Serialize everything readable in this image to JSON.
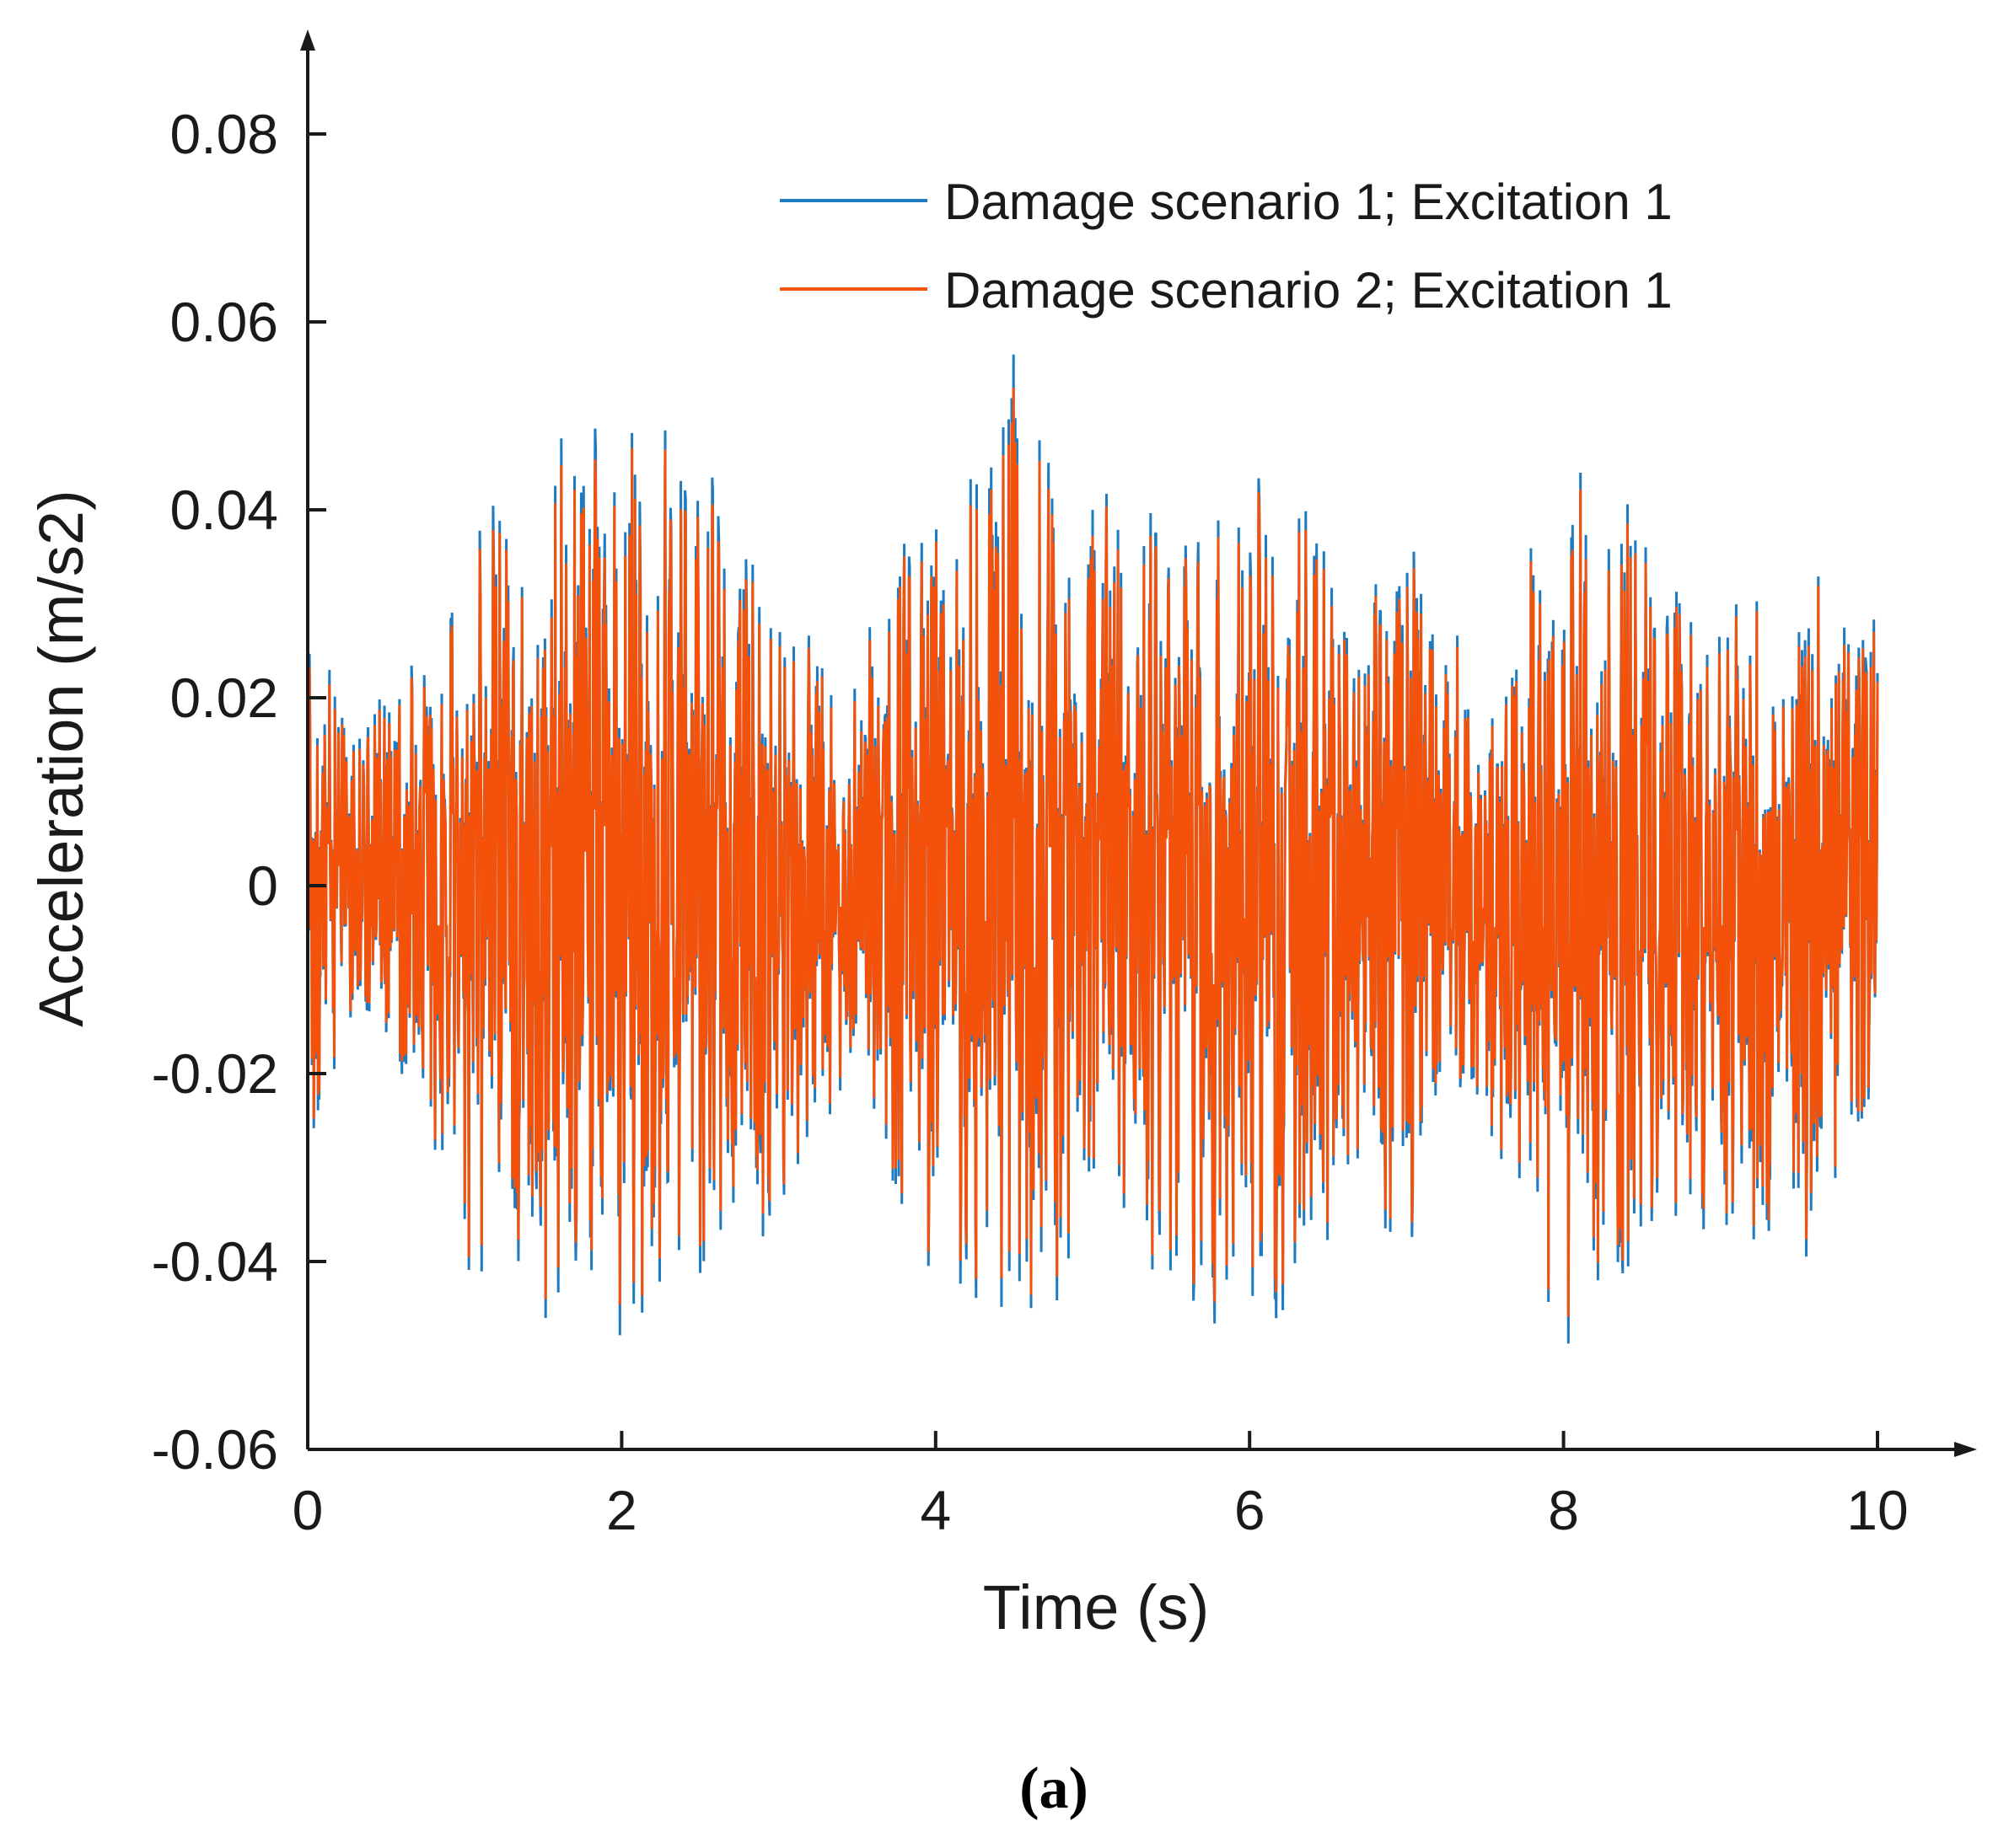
{
  "chart_data": {
    "type": "line",
    "title": "",
    "xlabel": "Time (s)",
    "ylabel": "Acceleration (m/s2)",
    "xlim": [
      0,
      10
    ],
    "ylim": [
      -0.06,
      0.08
    ],
    "xticks": [
      0,
      2,
      4,
      6,
      8,
      10
    ],
    "xtick_labels": [
      "0",
      "2",
      "4",
      "6",
      "8",
      "10"
    ],
    "yticks": [
      -0.06,
      -0.04,
      -0.02,
      0,
      0.02,
      0.04,
      0.06,
      0.08
    ],
    "ytick_labels": [
      "-0.06",
      "-0.04",
      "-0.02",
      "0",
      "0.02",
      "0.04",
      "0.06",
      "0.08"
    ],
    "grid": false,
    "legend_position": "top-right",
    "series": [
      {
        "name": "Damage scenario 1; Excitation 1",
        "color": "#1f7bc1"
      },
      {
        "name": "Damage scenario 2; Excitation 1",
        "color": "#f4520b"
      }
    ],
    "envelope": {
      "t": [
        0.0,
        0.3,
        0.6,
        1.0,
        1.5,
        2.0,
        2.3,
        2.6,
        3.0,
        3.4,
        3.8,
        4.2,
        4.5,
        5.0,
        5.4,
        5.8,
        6.2,
        6.6,
        7.0,
        7.4,
        7.8,
        8.0,
        8.4,
        8.8,
        9.2,
        9.6,
        10.0
      ],
      "max": [
        0.026,
        0.018,
        0.022,
        0.036,
        0.044,
        0.049,
        0.05,
        0.04,
        0.031,
        0.022,
        0.04,
        0.042,
        0.055,
        0.043,
        0.04,
        0.046,
        0.045,
        0.035,
        0.041,
        0.023,
        0.034,
        0.047,
        0.04,
        0.032,
        0.028,
        0.031,
        0.028
      ],
      "min": [
        -0.03,
        -0.014,
        -0.02,
        -0.042,
        -0.045,
        -0.046,
        -0.048,
        -0.044,
        -0.035,
        -0.022,
        -0.039,
        -0.045,
        -0.047,
        -0.04,
        -0.042,
        -0.046,
        -0.045,
        -0.04,
        -0.036,
        -0.023,
        -0.036,
        -0.048,
        -0.042,
        -0.037,
        -0.038,
        -0.039,
        -0.022
      ]
    },
    "samples_per_second": 260
  },
  "caption": "(a)"
}
